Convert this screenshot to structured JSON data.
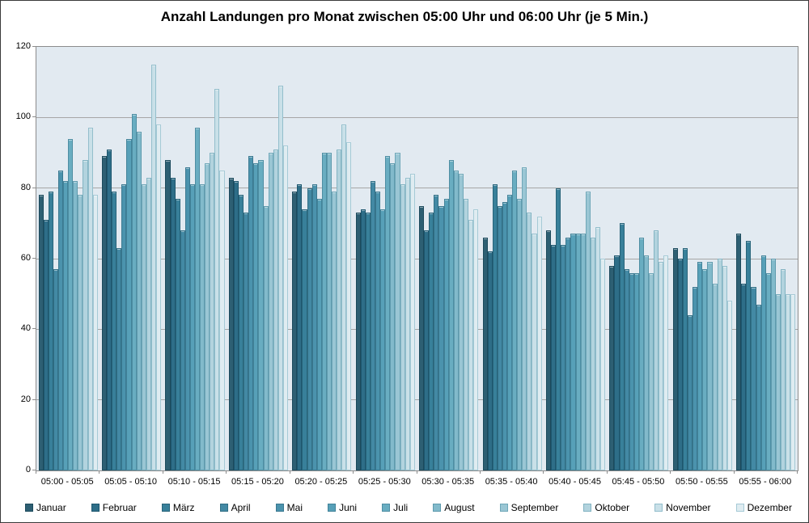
{
  "title": "Anzahl Landungen pro Monat zwischen 05:00 Uhr und 06:00 Uhr (je 5 Min.)",
  "y_axis": {
    "min": 0,
    "max": 120,
    "step": 20,
    "labels": [
      "120",
      "100",
      "80",
      "60",
      "40",
      "20",
      "0"
    ]
  },
  "chart_data": {
    "type": "bar",
    "title": "Anzahl Landungen pro Monat zwischen 05:00 Uhr und 06:00 Uhr (je 5 Min.)",
    "categories": [
      "05:00 - 05:05",
      "05:05 - 05:10",
      "05:10 - 05:15",
      "05:15 - 05:20",
      "05:20 - 05:25",
      "05:25 - 05:30",
      "05:30 - 05:35",
      "05:35 - 05:40",
      "05:40 - 05:45",
      "05:45 - 05:50",
      "05:50 - 05:55",
      "05:55 - 06:00"
    ],
    "ylim": [
      0,
      120
    ],
    "grid": true,
    "legend_position": "bottom",
    "series": [
      {
        "name": "Januar",
        "color": "#2D5F73",
        "border": "#1C4A5C",
        "values": [
          78,
          89,
          88,
          83,
          79,
          73,
          75,
          66,
          68,
          58,
          63,
          67
        ]
      },
      {
        "name": "Februar",
        "color": "#2E6E88",
        "border": "#1D566E",
        "values": [
          71,
          91,
          83,
          82,
          81,
          74,
          68,
          62,
          64,
          61,
          60,
          53
        ]
      },
      {
        "name": "März",
        "color": "#38809A",
        "border": "#28647A",
        "values": [
          79,
          79,
          77,
          78,
          74,
          73,
          73,
          81,
          80,
          70,
          63,
          65
        ]
      },
      {
        "name": "April",
        "color": "#4389A4",
        "border": "#316F85",
        "values": [
          57,
          63,
          68,
          73,
          80,
          82,
          78,
          75,
          64,
          57,
          44,
          52
        ]
      },
      {
        "name": "Mai",
        "color": "#4B93AD",
        "border": "#3A7890",
        "values": [
          85,
          81,
          86,
          89,
          81,
          79,
          75,
          76,
          66,
          56,
          52,
          47
        ]
      },
      {
        "name": "Juni",
        "color": "#57A0B8",
        "border": "#428399",
        "values": [
          82,
          94,
          81,
          87,
          77,
          74,
          77,
          78,
          67,
          56,
          59,
          61
        ]
      },
      {
        "name": "Juli",
        "color": "#69ADC1",
        "border": "#4E8EA3",
        "values": [
          94,
          101,
          97,
          88,
          90,
          89,
          88,
          85,
          67,
          66,
          57,
          56
        ]
      },
      {
        "name": "August",
        "color": "#82BACB",
        "border": "#5E9AAD",
        "values": [
          82,
          96,
          81,
          75,
          90,
          87,
          85,
          77,
          67,
          61,
          59,
          60
        ]
      },
      {
        "name": "September",
        "color": "#9AC6D4",
        "border": "#6FA7B8",
        "values": [
          78,
          81,
          87,
          90,
          79,
          90,
          84,
          86,
          79,
          56,
          53,
          50
        ]
      },
      {
        "name": "Oktober",
        "color": "#B2D3DE",
        "border": "#82B3C2",
        "values": [
          88,
          83,
          90,
          91,
          91,
          81,
          77,
          73,
          66,
          68,
          60,
          57
        ]
      },
      {
        "name": "November",
        "color": "#C9E0E8",
        "border": "#93BECC",
        "values": [
          97,
          115,
          108,
          109,
          98,
          83,
          71,
          67,
          69,
          59,
          58,
          50
        ]
      },
      {
        "name": "Dezember",
        "color": "#DFECF1",
        "border": "#A5CAD6",
        "values": [
          78,
          98,
          85,
          92,
          93,
          84,
          74,
          72,
          60,
          61,
          48,
          50
        ]
      }
    ]
  }
}
